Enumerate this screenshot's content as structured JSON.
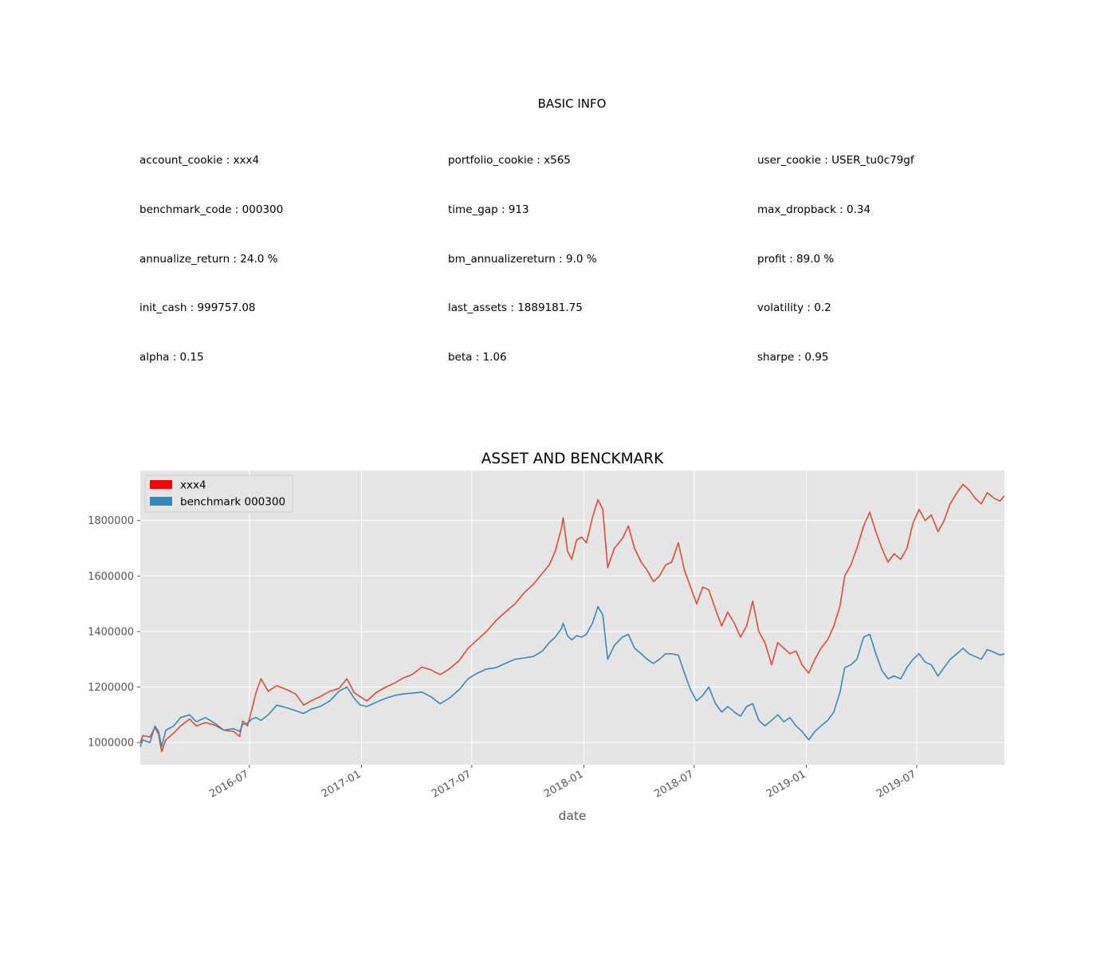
{
  "info": {
    "title": "BASIC INFO",
    "rows": [
      [
        "account_cookie : xxx4",
        "portfolio_cookie : x565",
        "user_cookie : USER_tu0c79gf"
      ],
      [
        "benchmark_code : 000300",
        "time_gap : 913",
        "max_dropback : 0.34"
      ],
      [
        "annualize_return : 24.0 %",
        "bm_annualizereturn : 9.0 %",
        "profit : 89.0 %"
      ],
      [
        "init_cash : 999757.08",
        "last_assets : 1889181.75",
        "volatility : 0.2"
      ],
      [
        "alpha : 0.15",
        "beta : 1.06",
        "sharpe : 0.95"
      ]
    ]
  },
  "chart_data": {
    "type": "line",
    "title": "ASSET AND BENCKMARK",
    "xlabel": "date",
    "ylabel": "",
    "xlim": [
      "2016-01-04",
      "2019-11-22"
    ],
    "ylim": [
      920000,
      1980000
    ],
    "x_ticks": [
      "2016-07",
      "2017-01",
      "2017-07",
      "2018-01",
      "2018-07",
      "2019-01",
      "2019-07"
    ],
    "y_ticks": [
      1000000,
      1200000,
      1400000,
      1600000,
      1800000
    ],
    "grid": true,
    "legend_position": "top-left",
    "series": [
      {
        "name": "xxx4",
        "color": "#e24a33",
        "legend_color": "#ff0000",
        "points": [
          [
            "2016-01-04",
            999757
          ],
          [
            "2016-01-08",
            1025000
          ],
          [
            "2016-01-20",
            1020000
          ],
          [
            "2016-01-28",
            1055000
          ],
          [
            "2016-02-03",
            1030000
          ],
          [
            "2016-02-08",
            968000
          ],
          [
            "2016-02-15",
            1010000
          ],
          [
            "2016-02-28",
            1035000
          ],
          [
            "2016-03-10",
            1060000
          ],
          [
            "2016-03-25",
            1085000
          ],
          [
            "2016-04-05",
            1060000
          ],
          [
            "2016-04-20",
            1072000
          ],
          [
            "2016-05-05",
            1063000
          ],
          [
            "2016-05-20",
            1045000
          ],
          [
            "2016-06-05",
            1040000
          ],
          [
            "2016-06-15",
            1022000
          ],
          [
            "2016-06-20",
            1078000
          ],
          [
            "2016-06-28",
            1060000
          ],
          [
            "2016-07-05",
            1120000
          ],
          [
            "2016-07-12",
            1180000
          ],
          [
            "2016-07-20",
            1230000
          ],
          [
            "2016-08-01",
            1185000
          ],
          [
            "2016-08-15",
            1205000
          ],
          [
            "2016-09-01",
            1190000
          ],
          [
            "2016-09-15",
            1175000
          ],
          [
            "2016-09-28",
            1135000
          ],
          [
            "2016-10-10",
            1150000
          ],
          [
            "2016-10-25",
            1165000
          ],
          [
            "2016-11-10",
            1185000
          ],
          [
            "2016-11-25",
            1195000
          ],
          [
            "2016-12-08",
            1230000
          ],
          [
            "2016-12-20",
            1180000
          ],
          [
            "2016-12-30",
            1165000
          ],
          [
            "2017-01-10",
            1150000
          ],
          [
            "2017-01-25",
            1180000
          ],
          [
            "2017-02-10",
            1200000
          ],
          [
            "2017-02-25",
            1215000
          ],
          [
            "2017-03-10",
            1232000
          ],
          [
            "2017-03-25",
            1245000
          ],
          [
            "2017-04-10",
            1272000
          ],
          [
            "2017-04-25",
            1262000
          ],
          [
            "2017-05-10",
            1245000
          ],
          [
            "2017-05-25",
            1265000
          ],
          [
            "2017-06-10",
            1295000
          ],
          [
            "2017-06-25",
            1340000
          ],
          [
            "2017-07-10",
            1370000
          ],
          [
            "2017-07-25",
            1400000
          ],
          [
            "2017-08-10",
            1440000
          ],
          [
            "2017-08-25",
            1470000
          ],
          [
            "2017-09-10",
            1500000
          ],
          [
            "2017-09-25",
            1540000
          ],
          [
            "2017-10-10",
            1570000
          ],
          [
            "2017-10-25",
            1610000
          ],
          [
            "2017-11-05",
            1640000
          ],
          [
            "2017-11-15",
            1690000
          ],
          [
            "2017-11-25",
            1770000
          ],
          [
            "2017-11-28",
            1810000
          ],
          [
            "2017-12-05",
            1690000
          ],
          [
            "2017-12-12",
            1660000
          ],
          [
            "2017-12-20",
            1730000
          ],
          [
            "2017-12-28",
            1740000
          ],
          [
            "2018-01-05",
            1720000
          ],
          [
            "2018-01-15",
            1810000
          ],
          [
            "2018-01-24",
            1875000
          ],
          [
            "2018-02-01",
            1840000
          ],
          [
            "2018-02-09",
            1630000
          ],
          [
            "2018-02-20",
            1700000
          ],
          [
            "2018-03-05",
            1735000
          ],
          [
            "2018-03-15",
            1780000
          ],
          [
            "2018-03-25",
            1700000
          ],
          [
            "2018-04-05",
            1650000
          ],
          [
            "2018-04-15",
            1620000
          ],
          [
            "2018-04-25",
            1580000
          ],
          [
            "2018-05-05",
            1600000
          ],
          [
            "2018-05-15",
            1640000
          ],
          [
            "2018-05-25",
            1650000
          ],
          [
            "2018-06-05",
            1720000
          ],
          [
            "2018-06-15",
            1620000
          ],
          [
            "2018-06-25",
            1560000
          ],
          [
            "2018-07-05",
            1500000
          ],
          [
            "2018-07-15",
            1560000
          ],
          [
            "2018-07-25",
            1550000
          ],
          [
            "2018-08-05",
            1480000
          ],
          [
            "2018-08-15",
            1420000
          ],
          [
            "2018-08-25",
            1470000
          ],
          [
            "2018-09-05",
            1430000
          ],
          [
            "2018-09-15",
            1380000
          ],
          [
            "2018-09-25",
            1420000
          ],
          [
            "2018-10-05",
            1510000
          ],
          [
            "2018-10-15",
            1400000
          ],
          [
            "2018-10-25",
            1360000
          ],
          [
            "2018-11-05",
            1280000
          ],
          [
            "2018-11-15",
            1360000
          ],
          [
            "2018-11-25",
            1340000
          ],
          [
            "2018-12-05",
            1320000
          ],
          [
            "2018-12-15",
            1330000
          ],
          [
            "2018-12-25",
            1280000
          ],
          [
            "2019-01-05",
            1250000
          ],
          [
            "2019-01-15",
            1300000
          ],
          [
            "2019-01-25",
            1340000
          ],
          [
            "2019-02-05",
            1370000
          ],
          [
            "2019-02-15",
            1420000
          ],
          [
            "2019-02-25",
            1490000
          ],
          [
            "2019-03-05",
            1600000
          ],
          [
            "2019-03-15",
            1640000
          ],
          [
            "2019-03-25",
            1700000
          ],
          [
            "2019-04-05",
            1780000
          ],
          [
            "2019-04-15",
            1830000
          ],
          [
            "2019-04-25",
            1760000
          ],
          [
            "2019-05-05",
            1700000
          ],
          [
            "2019-05-15",
            1650000
          ],
          [
            "2019-05-25",
            1680000
          ],
          [
            "2019-06-05",
            1660000
          ],
          [
            "2019-06-15",
            1700000
          ],
          [
            "2019-06-25",
            1790000
          ],
          [
            "2019-07-05",
            1840000
          ],
          [
            "2019-07-15",
            1800000
          ],
          [
            "2019-07-25",
            1820000
          ],
          [
            "2019-08-05",
            1760000
          ],
          [
            "2019-08-15",
            1800000
          ],
          [
            "2019-08-25",
            1860000
          ],
          [
            "2019-09-05",
            1900000
          ],
          [
            "2019-09-15",
            1930000
          ],
          [
            "2019-09-25",
            1910000
          ],
          [
            "2019-10-05",
            1880000
          ],
          [
            "2019-10-15",
            1860000
          ],
          [
            "2019-10-25",
            1900000
          ],
          [
            "2019-11-05",
            1880000
          ],
          [
            "2019-11-15",
            1870000
          ],
          [
            "2019-11-22",
            1889182
          ]
        ]
      },
      {
        "name": "benchmark 000300",
        "color": "#348abd",
        "legend_color": "#348abd",
        "points": [
          [
            "2016-01-04",
            985000
          ],
          [
            "2016-01-08",
            1010000
          ],
          [
            "2016-01-20",
            1000000
          ],
          [
            "2016-01-28",
            1060000
          ],
          [
            "2016-02-03",
            1040000
          ],
          [
            "2016-02-08",
            985000
          ],
          [
            "2016-02-15",
            1045000
          ],
          [
            "2016-02-28",
            1060000
          ],
          [
            "2016-03-10",
            1090000
          ],
          [
            "2016-03-25",
            1100000
          ],
          [
            "2016-04-05",
            1075000
          ],
          [
            "2016-04-20",
            1090000
          ],
          [
            "2016-05-05",
            1070000
          ],
          [
            "2016-05-20",
            1045000
          ],
          [
            "2016-06-05",
            1050000
          ],
          [
            "2016-06-15",
            1040000
          ],
          [
            "2016-06-20",
            1065000
          ],
          [
            "2016-06-28",
            1070000
          ],
          [
            "2016-07-05",
            1085000
          ],
          [
            "2016-07-12",
            1090000
          ],
          [
            "2016-07-20",
            1080000
          ],
          [
            "2016-08-01",
            1100000
          ],
          [
            "2016-08-15",
            1135000
          ],
          [
            "2016-09-01",
            1125000
          ],
          [
            "2016-09-15",
            1115000
          ],
          [
            "2016-09-28",
            1105000
          ],
          [
            "2016-10-10",
            1120000
          ],
          [
            "2016-10-25",
            1130000
          ],
          [
            "2016-11-10",
            1150000
          ],
          [
            "2016-11-25",
            1185000
          ],
          [
            "2016-12-08",
            1200000
          ],
          [
            "2016-12-20",
            1160000
          ],
          [
            "2016-12-30",
            1135000
          ],
          [
            "2017-01-10",
            1130000
          ],
          [
            "2017-01-25",
            1145000
          ],
          [
            "2017-02-10",
            1160000
          ],
          [
            "2017-02-25",
            1170000
          ],
          [
            "2017-03-10",
            1175000
          ],
          [
            "2017-03-25",
            1178000
          ],
          [
            "2017-04-10",
            1182000
          ],
          [
            "2017-04-25",
            1165000
          ],
          [
            "2017-05-10",
            1140000
          ],
          [
            "2017-05-25",
            1160000
          ],
          [
            "2017-06-10",
            1190000
          ],
          [
            "2017-06-25",
            1230000
          ],
          [
            "2017-07-10",
            1250000
          ],
          [
            "2017-07-25",
            1265000
          ],
          [
            "2017-08-10",
            1270000
          ],
          [
            "2017-08-25",
            1285000
          ],
          [
            "2017-09-10",
            1300000
          ],
          [
            "2017-09-25",
            1305000
          ],
          [
            "2017-10-10",
            1310000
          ],
          [
            "2017-10-25",
            1330000
          ],
          [
            "2017-11-05",
            1360000
          ],
          [
            "2017-11-15",
            1380000
          ],
          [
            "2017-11-25",
            1410000
          ],
          [
            "2017-11-28",
            1430000
          ],
          [
            "2017-12-05",
            1385000
          ],
          [
            "2017-12-12",
            1370000
          ],
          [
            "2017-12-20",
            1385000
          ],
          [
            "2017-12-28",
            1380000
          ],
          [
            "2018-01-05",
            1390000
          ],
          [
            "2018-01-15",
            1430000
          ],
          [
            "2018-01-24",
            1490000
          ],
          [
            "2018-02-01",
            1460000
          ],
          [
            "2018-02-09",
            1300000
          ],
          [
            "2018-02-20",
            1350000
          ],
          [
            "2018-03-05",
            1380000
          ],
          [
            "2018-03-15",
            1390000
          ],
          [
            "2018-03-25",
            1340000
          ],
          [
            "2018-04-05",
            1320000
          ],
          [
            "2018-04-15",
            1300000
          ],
          [
            "2018-04-25",
            1285000
          ],
          [
            "2018-05-05",
            1300000
          ],
          [
            "2018-05-15",
            1320000
          ],
          [
            "2018-05-25",
            1320000
          ],
          [
            "2018-06-05",
            1315000
          ],
          [
            "2018-06-15",
            1250000
          ],
          [
            "2018-06-25",
            1190000
          ],
          [
            "2018-07-05",
            1150000
          ],
          [
            "2018-07-15",
            1170000
          ],
          [
            "2018-07-25",
            1200000
          ],
          [
            "2018-08-05",
            1140000
          ],
          [
            "2018-08-15",
            1110000
          ],
          [
            "2018-08-25",
            1130000
          ],
          [
            "2018-09-05",
            1110000
          ],
          [
            "2018-09-15",
            1095000
          ],
          [
            "2018-09-25",
            1130000
          ],
          [
            "2018-10-05",
            1140000
          ],
          [
            "2018-10-15",
            1080000
          ],
          [
            "2018-10-25",
            1060000
          ],
          [
            "2018-11-05",
            1080000
          ],
          [
            "2018-11-15",
            1100000
          ],
          [
            "2018-11-25",
            1075000
          ],
          [
            "2018-12-05",
            1090000
          ],
          [
            "2018-12-15",
            1060000
          ],
          [
            "2018-12-25",
            1040000
          ],
          [
            "2019-01-05",
            1010000
          ],
          [
            "2019-01-15",
            1040000
          ],
          [
            "2019-01-25",
            1060000
          ],
          [
            "2019-02-05",
            1080000
          ],
          [
            "2019-02-15",
            1110000
          ],
          [
            "2019-02-25",
            1180000
          ],
          [
            "2019-03-05",
            1270000
          ],
          [
            "2019-03-15",
            1280000
          ],
          [
            "2019-03-25",
            1300000
          ],
          [
            "2019-04-05",
            1380000
          ],
          [
            "2019-04-15",
            1390000
          ],
          [
            "2019-04-25",
            1320000
          ],
          [
            "2019-05-05",
            1260000
          ],
          [
            "2019-05-15",
            1230000
          ],
          [
            "2019-05-25",
            1240000
          ],
          [
            "2019-06-05",
            1230000
          ],
          [
            "2019-06-15",
            1270000
          ],
          [
            "2019-06-25",
            1300000
          ],
          [
            "2019-07-05",
            1320000
          ],
          [
            "2019-07-15",
            1290000
          ],
          [
            "2019-07-25",
            1280000
          ],
          [
            "2019-08-05",
            1240000
          ],
          [
            "2019-08-15",
            1270000
          ],
          [
            "2019-08-25",
            1300000
          ],
          [
            "2019-09-05",
            1320000
          ],
          [
            "2019-09-15",
            1340000
          ],
          [
            "2019-09-25",
            1320000
          ],
          [
            "2019-10-05",
            1310000
          ],
          [
            "2019-10-15",
            1300000
          ],
          [
            "2019-10-25",
            1335000
          ],
          [
            "2019-11-05",
            1325000
          ],
          [
            "2019-11-15",
            1315000
          ],
          [
            "2019-11-22",
            1320000
          ]
        ]
      }
    ]
  }
}
